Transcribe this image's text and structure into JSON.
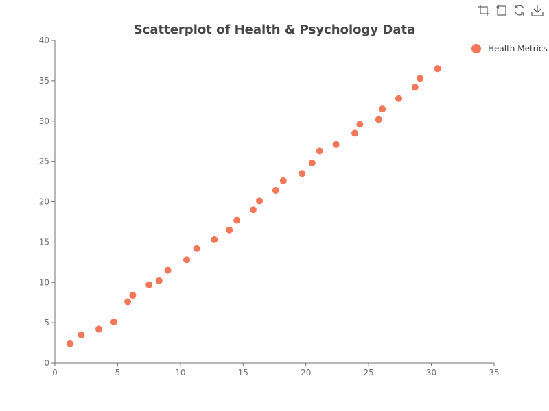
{
  "toolbox": {
    "items": [
      {
        "icon": "zoom-select-icon",
        "label": "Zoom"
      },
      {
        "icon": "zoom-reset-icon",
        "label": "Zoom Reset"
      },
      {
        "icon": "restore-icon",
        "label": "Restore"
      },
      {
        "icon": "download-icon",
        "label": "Save as Image"
      }
    ]
  },
  "chart_data": {
    "type": "scatter",
    "title": "Scatterplot of Health & Psychology Data",
    "xlabel": "",
    "ylabel": "",
    "xlim": [
      0,
      35
    ],
    "ylim": [
      0,
      40
    ],
    "x_ticks": [
      "0",
      "5",
      "10",
      "15",
      "20",
      "25",
      "30",
      "35"
    ],
    "y_ticks": [
      "0",
      "5",
      "10",
      "15",
      "20",
      "25",
      "30",
      "35",
      "40"
    ],
    "grid": false,
    "legend_position": "top-right",
    "series": [
      {
        "name": "Health Metrics",
        "color": "#f4775a",
        "points": [
          [
            1.2,
            2.4
          ],
          [
            2.1,
            3.5
          ],
          [
            3.5,
            4.2
          ],
          [
            4.7,
            5.1
          ],
          [
            5.8,
            7.6
          ],
          [
            6.2,
            8.4
          ],
          [
            7.5,
            9.7
          ],
          [
            8.3,
            10.2
          ],
          [
            9.0,
            11.5
          ],
          [
            10.5,
            12.8
          ],
          [
            11.3,
            14.2
          ],
          [
            12.7,
            15.3
          ],
          [
            13.9,
            16.5
          ],
          [
            14.5,
            17.7
          ],
          [
            15.8,
            19.0
          ],
          [
            16.3,
            20.1
          ],
          [
            17.6,
            21.4
          ],
          [
            18.2,
            22.6
          ],
          [
            19.7,
            23.5
          ],
          [
            20.5,
            24.8
          ],
          [
            21.1,
            26.3
          ],
          [
            22.4,
            27.1
          ],
          [
            23.9,
            28.5
          ],
          [
            24.3,
            29.6
          ],
          [
            25.8,
            30.2
          ],
          [
            26.1,
            31.5
          ],
          [
            27.4,
            32.8
          ],
          [
            28.7,
            34.2
          ],
          [
            29.1,
            35.3
          ],
          [
            30.5,
            36.5
          ]
        ]
      }
    ]
  }
}
